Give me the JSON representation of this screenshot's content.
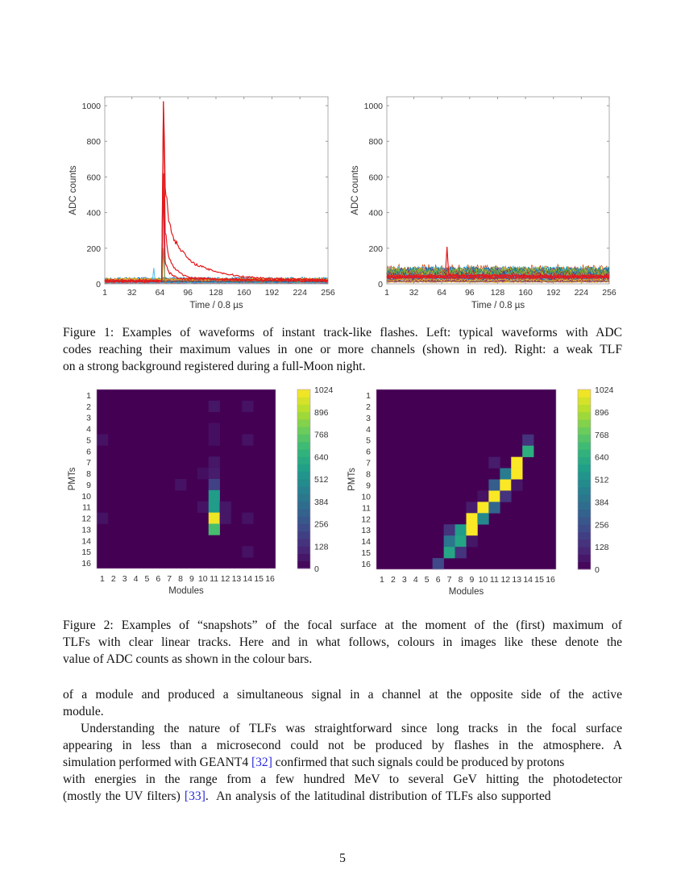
{
  "chart_data": [
    {
      "type": "line",
      "panel": "left",
      "xlabel": "Time / 0.8 µs",
      "ylabel": "ADC counts",
      "xlim": [
        1,
        256
      ],
      "ylim": [
        0,
        1050
      ],
      "xticks": [
        "1",
        "32",
        "64",
        "96",
        "128",
        "160",
        "192",
        "224",
        "256"
      ],
      "yticks": [
        "0",
        "200",
        "400",
        "600",
        "800",
        "1000"
      ],
      "background_level": [
        5,
        40
      ],
      "background_channels": 24,
      "highlight_color": "#e41a1c",
      "highlight_series": [
        {
          "points": [
            [
              1,
              20
            ],
            [
              66,
              20
            ],
            [
              68,
              1024
            ],
            [
              70,
              560
            ],
            [
              74,
              360
            ],
            [
              80,
              250
            ],
            [
              90,
              180
            ],
            [
              100,
              120
            ],
            [
              120,
              80
            ],
            [
              140,
              55
            ],
            [
              160,
              40
            ],
            [
              190,
              30
            ],
            [
              256,
              22
            ]
          ]
        },
        {
          "points": [
            [
              1,
              15
            ],
            [
              66,
              15
            ],
            [
              68,
              1024
            ],
            [
              70,
              300
            ],
            [
              74,
              150
            ],
            [
              80,
              90
            ],
            [
              90,
              50
            ],
            [
              100,
              35
            ],
            [
              130,
              25
            ],
            [
              256,
              18
            ]
          ]
        },
        {
          "points": [
            [
              1,
              12
            ],
            [
              66,
              12
            ],
            [
              68,
              600
            ],
            [
              70,
              120
            ],
            [
              75,
              60
            ],
            [
              85,
              30
            ],
            [
              256,
              15
            ]
          ]
        }
      ],
      "other_peaks": [
        [
          68,
          580
        ],
        [
          68,
          200
        ],
        [
          57,
          90
        ]
      ]
    },
    {
      "type": "line",
      "panel": "right",
      "xlabel": "Time / 0.8 µs",
      "ylabel": "ADC counts",
      "xlim": [
        1,
        256
      ],
      "ylim": [
        0,
        1050
      ],
      "xticks": [
        "1",
        "32",
        "64",
        "96",
        "128",
        "160",
        "192",
        "224",
        "256"
      ],
      "yticks": [
        "0",
        "200",
        "400",
        "600",
        "800",
        "1000"
      ],
      "background_level": [
        5,
        120
      ],
      "background_channels": 40,
      "highlight_color": "#e41a1c",
      "highlight_series": [
        {
          "points": [
            [
              1,
              40
            ],
            [
              68,
              40
            ],
            [
              70,
              205
            ],
            [
              72,
              50
            ],
            [
              256,
              40
            ]
          ]
        },
        {
          "points": [
            [
              1,
              35
            ],
            [
              256,
              35
            ]
          ]
        },
        {
          "points": [
            [
              1,
              45
            ],
            [
              256,
              45
            ]
          ]
        }
      ]
    },
    {
      "type": "heatmap",
      "panel": "left",
      "xlabel": "Modules",
      "ylabel": "PMTs",
      "xticks": [
        "1",
        "2",
        "3",
        "4",
        "5",
        "6",
        "7",
        "8",
        "9",
        "10",
        "11",
        "12",
        "13",
        "14",
        "15",
        "16"
      ],
      "yticks": [
        "1",
        "2",
        "3",
        "4",
        "5",
        "6",
        "7",
        "8",
        "9",
        "10",
        "11",
        "12",
        "13",
        "14",
        "15",
        "16"
      ],
      "colormap": "viridis",
      "clim": [
        0,
        1024
      ],
      "colorbar_ticks": [
        "0",
        "128",
        "256",
        "384",
        "512",
        "640",
        "768",
        "896",
        "1024"
      ],
      "background_value": 0,
      "cells": [
        [
          11,
          2,
          60
        ],
        [
          14,
          2,
          50
        ],
        [
          11,
          4,
          40
        ],
        [
          1,
          5,
          50
        ],
        [
          11,
          5,
          40
        ],
        [
          14,
          5,
          50
        ],
        [
          11,
          7,
          60
        ],
        [
          10,
          8,
          40
        ],
        [
          11,
          8,
          80
        ],
        [
          8,
          9,
          50
        ],
        [
          11,
          9,
          200
        ],
        [
          11,
          10,
          560
        ],
        [
          10,
          11,
          50
        ],
        [
          11,
          11,
          560
        ],
        [
          12,
          11,
          60
        ],
        [
          1,
          12,
          50
        ],
        [
          11,
          12,
          1000
        ],
        [
          12,
          12,
          60
        ],
        [
          14,
          12,
          50
        ],
        [
          11,
          13,
          720
        ],
        [
          14,
          15,
          50
        ]
      ]
    },
    {
      "type": "heatmap",
      "panel": "right",
      "xlabel": "Modules",
      "ylabel": "PMTs",
      "xticks": [
        "1",
        "2",
        "3",
        "4",
        "5",
        "6",
        "7",
        "8",
        "9",
        "10",
        "11",
        "12",
        "13",
        "14",
        "15",
        "16"
      ],
      "yticks": [
        "1",
        "2",
        "3",
        "4",
        "5",
        "6",
        "7",
        "8",
        "9",
        "10",
        "11",
        "12",
        "13",
        "14",
        "15",
        "16"
      ],
      "colormap": "viridis",
      "clim": [
        0,
        1024
      ],
      "colorbar_ticks": [
        "0",
        "128",
        "256",
        "384",
        "512",
        "640",
        "768",
        "896",
        "1024"
      ],
      "background_value": 0,
      "cells": [
        [
          14,
          5,
          150
        ],
        [
          14,
          6,
          640
        ],
        [
          11,
          7,
          80
        ],
        [
          13,
          7,
          1020
        ],
        [
          12,
          8,
          430
        ],
        [
          13,
          8,
          1020
        ],
        [
          11,
          9,
          300
        ],
        [
          12,
          9,
          1020
        ],
        [
          13,
          9,
          60
        ],
        [
          10,
          10,
          50
        ],
        [
          11,
          10,
          1020
        ],
        [
          12,
          10,
          150
        ],
        [
          9,
          11,
          80
        ],
        [
          10,
          11,
          1020
        ],
        [
          11,
          11,
          330
        ],
        [
          9,
          12,
          1020
        ],
        [
          10,
          12,
          480
        ],
        [
          7,
          13,
          150
        ],
        [
          8,
          13,
          560
        ],
        [
          9,
          13,
          1020
        ],
        [
          7,
          14,
          400
        ],
        [
          8,
          14,
          600
        ],
        [
          9,
          14,
          60
        ],
        [
          7,
          15,
          600
        ],
        [
          8,
          15,
          150
        ],
        [
          6,
          16,
          220
        ]
      ]
    }
  ],
  "figure1_caption": [
    "Figure 1: Examples of waveforms of instant track-like flashes. Left: typical waveforms with ADC",
    "codes reaching their maximum values in one or more channels (shown in red). Right: a weak TLF",
    "on a strong background registered during a full-Moon night."
  ],
  "figure2_caption": [
    "Figure 2: Examples of “snapshots” of the focal surface at the moment of the (first) maximum of",
    "TLFs with clear linear tracks. Here and in what follows, colours in images like these denote the",
    "value of ADC counts as shown in the colour bars."
  ],
  "body": [
    {
      "text": "of a module and produced a simultaneous signal in a channel at the opposite side of the active"
    },
    {
      "text": "module."
    },
    {
      "text": "Understanding the nature of TLFs was straightforward since long tracks in the focal surface"
    },
    {
      "text": "appearing in less than a microsecond could not be produced by flashes in the atmosphere.  A"
    },
    {
      "pre": "simulation performed with GEANT4 ",
      "cite": "[32]",
      "post": " confirmed that such signals could be produced by protons"
    },
    {
      "text": "with energies in the range from a few hundred MeV to several GeV hitting the photodetector"
    },
    {
      "pre": "(mostly the UV filters) ",
      "cite": "[33]",
      "post": ".  An analysis of the latitudinal distribution of TLFs also supported"
    }
  ],
  "page_number": "5",
  "colors": {
    "citation": "#2a2ae0",
    "highlight": "#e41a1c"
  }
}
